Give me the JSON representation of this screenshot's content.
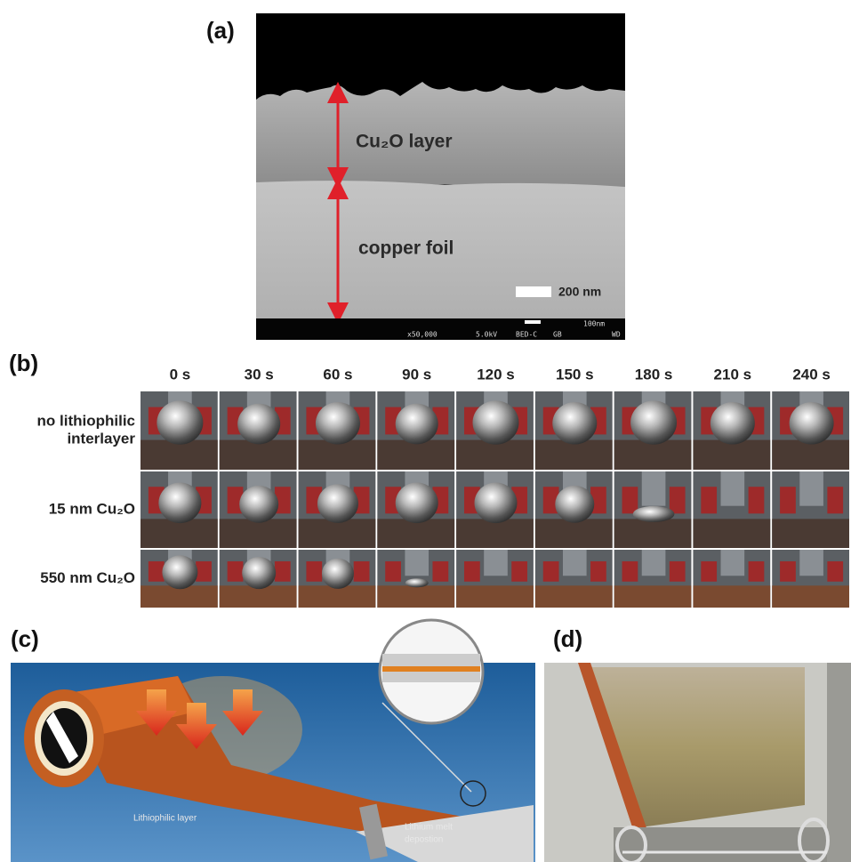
{
  "panels": {
    "a": {
      "label": "(a)",
      "layer": "Cu₂O layer",
      "foil": "copper foil",
      "scale_bar": "200 nm",
      "sem_info": [
        "x50,000",
        "5.0kV",
        "BED-C",
        "GB",
        "WD",
        "100nm"
      ]
    },
    "b": {
      "label": "(b)",
      "times": [
        "0 s",
        "30 s",
        "60 s",
        "90 s",
        "120 s",
        "150 s",
        "180 s",
        "210 s",
        "240 s"
      ],
      "rows": [
        [
          "no lithiophilic",
          "interlayer"
        ],
        [
          "15 nm Cu₂O"
        ],
        [
          "550 nm Cu₂O"
        ]
      ]
    },
    "c": {
      "label": "(c)",
      "layer_label": "Lithiophilic layer",
      "melt_label": [
        "Lithium melt",
        "depostion"
      ]
    },
    "d": {
      "label": "(d)"
    }
  }
}
